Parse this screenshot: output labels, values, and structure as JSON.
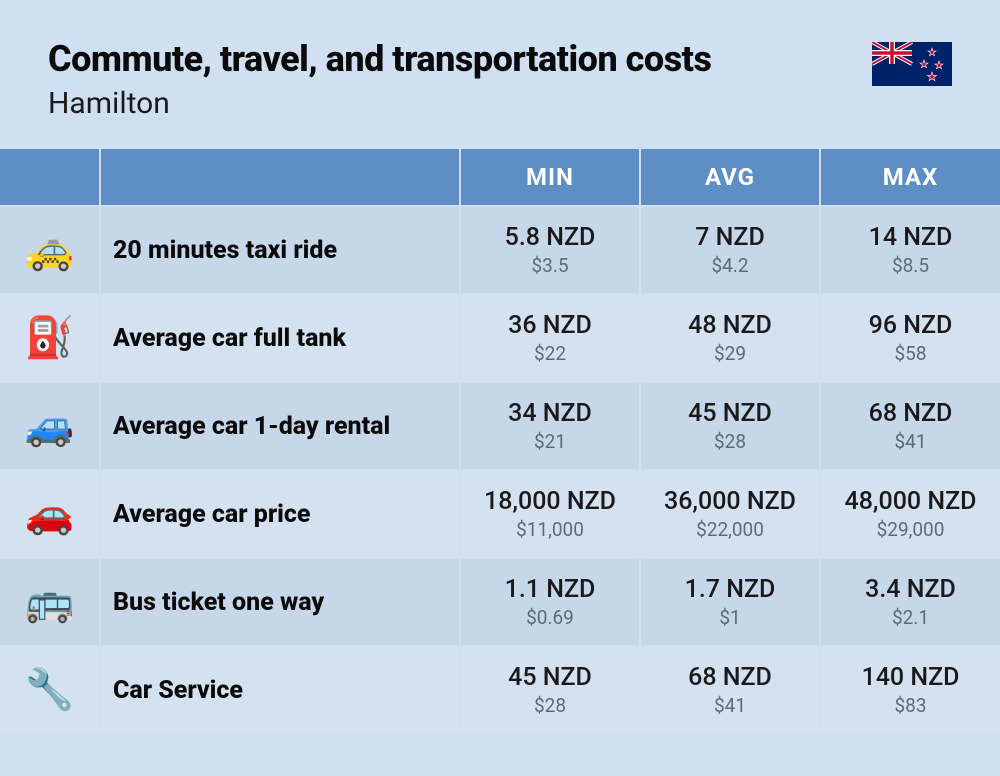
{
  "header": {
    "title": "Commute, travel, and transportation costs",
    "subtitle": "Hamilton",
    "flag_bg": "#012169",
    "flag_red": "#C8102E",
    "flag_white": "#ffffff"
  },
  "columns": {
    "min": "MIN",
    "avg": "AVG",
    "max": "MAX"
  },
  "rows": [
    {
      "icon": "🚕",
      "label": "20 minutes taxi ride",
      "min_primary": "5.8 NZD",
      "min_secondary": "$3.5",
      "avg_primary": "7 NZD",
      "avg_secondary": "$4.2",
      "max_primary": "14 NZD",
      "max_secondary": "$8.5"
    },
    {
      "icon": "⛽",
      "label": "Average car full tank",
      "min_primary": "36 NZD",
      "min_secondary": "$22",
      "avg_primary": "48 NZD",
      "avg_secondary": "$29",
      "max_primary": "96 NZD",
      "max_secondary": "$58"
    },
    {
      "icon": "🚙",
      "label": "Average car 1-day rental",
      "min_primary": "34 NZD",
      "min_secondary": "$21",
      "avg_primary": "45 NZD",
      "avg_secondary": "$28",
      "max_primary": "68 NZD",
      "max_secondary": "$41"
    },
    {
      "icon": "🚗",
      "label": "Average car price",
      "min_primary": "18,000 NZD",
      "min_secondary": "$11,000",
      "avg_primary": "36,000 NZD",
      "avg_secondary": "$22,000",
      "max_primary": "48,000 NZD",
      "max_secondary": "$29,000"
    },
    {
      "icon": "🚌",
      "label": "Bus ticket one way",
      "min_primary": "1.1 NZD",
      "min_secondary": "$0.69",
      "avg_primary": "1.7 NZD",
      "avg_secondary": "$1",
      "max_primary": "3.4 NZD",
      "max_secondary": "$2.1"
    },
    {
      "icon": "🔧",
      "label": "Car Service",
      "min_primary": "45 NZD",
      "min_secondary": "$28",
      "avg_primary": "68 NZD",
      "avg_secondary": "$41",
      "max_primary": "140 NZD",
      "max_secondary": "$83"
    }
  ],
  "styling": {
    "page_bg": "#d0e0f2",
    "header_bg": "#5d8ec4",
    "header_text": "#ffffff",
    "row_even_bg": "#c7d7ea",
    "row_odd_bg": "#d4e1f0",
    "primary_text": "#1a1a1a",
    "secondary_text": "#5a6b7d",
    "label_text": "#0a0a0a",
    "title_fontsize": 36,
    "subtitle_fontsize": 30,
    "header_fontsize": 24,
    "label_fontsize": 25,
    "primary_fontsize": 25,
    "secondary_fontsize": 19,
    "border_color": "#d0e0f2"
  }
}
